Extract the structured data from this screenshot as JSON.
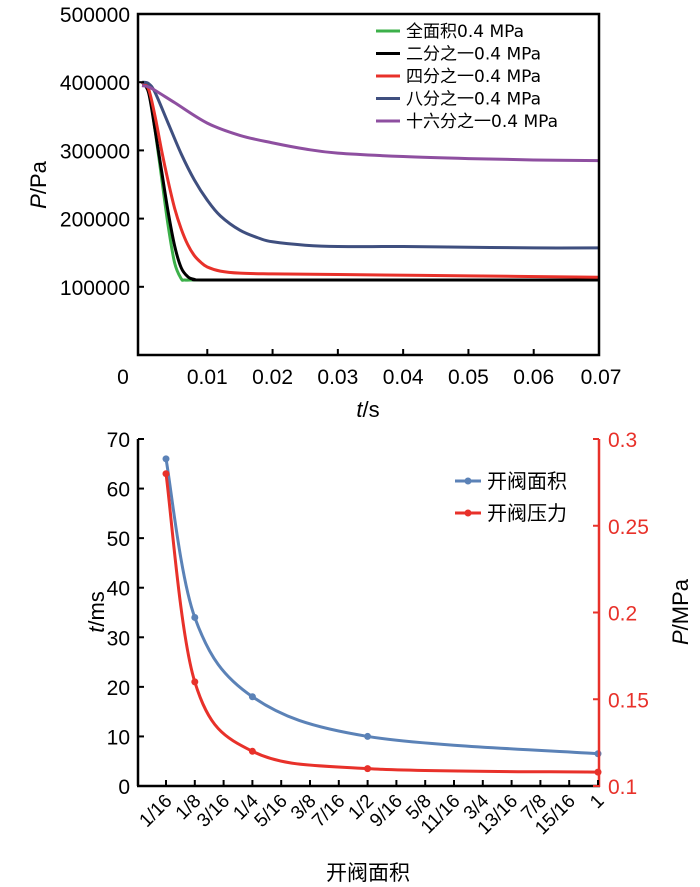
{
  "chart_data": [
    {
      "type": "line",
      "title": "",
      "xlabel": {
        "var": "t",
        "unit": "/s"
      },
      "ylabel": {
        "var": "P",
        "unit": "/Pa"
      },
      "xlim": [
        0,
        0.07
      ],
      "ylim": [
        0,
        500000
      ],
      "x_ticks": [
        0,
        0.01,
        0.02,
        0.03,
        0.04,
        0.05,
        0.06,
        0.07
      ],
      "x_tick_labels": [
        "0",
        "0.01",
        "0.02",
        "0.03",
        "0.04",
        "0.05",
        "0.06",
        "0.07"
      ],
      "y_ticks": [
        100000,
        200000,
        300000,
        400000,
        500000
      ],
      "y_tick_labels": [
        "100000",
        "200000",
        "300000",
        "400000",
        "500000"
      ],
      "grid": false,
      "legend_position": "top-right",
      "series": [
        {
          "name": "全面积0.4 MPa",
          "color": "#3cb04a",
          "x": [
            0,
            0.001,
            0.002,
            0.003,
            0.004,
            0.005,
            0.006,
            0.0065,
            0.008,
            0.01,
            0.03,
            0.07
          ],
          "y": [
            400000,
            390000,
            330000,
            260000,
            190000,
            135000,
            112000,
            110000,
            110000,
            110000,
            110000,
            110000
          ]
        },
        {
          "name": "二分之一0.4 MPa",
          "color": "#000000",
          "x": [
            0,
            0.001,
            0.002,
            0.003,
            0.004,
            0.005,
            0.006,
            0.007,
            0.008,
            0.01,
            0.03,
            0.07
          ],
          "y": [
            400000,
            385000,
            330000,
            270000,
            210000,
            160000,
            128000,
            115000,
            111000,
            110000,
            110000,
            110000
          ]
        },
        {
          "name": "四分之一0.4 MPa",
          "color": "#e8312a",
          "x": [
            0,
            0.001,
            0.002,
            0.003,
            0.004,
            0.005,
            0.006,
            0.007,
            0.008,
            0.009,
            0.01,
            0.012,
            0.015,
            0.02,
            0.03,
            0.05,
            0.07
          ],
          "y": [
            400000,
            390000,
            350000,
            300000,
            255000,
            215000,
            185000,
            162000,
            146000,
            136000,
            129000,
            123000,
            120000,
            119000,
            118000,
            116000,
            114000
          ]
        },
        {
          "name": "八分之一0.4 MPa",
          "color": "#3f4f7f",
          "x": [
            0,
            0.001,
            0.002,
            0.004,
            0.006,
            0.008,
            0.01,
            0.012,
            0.015,
            0.018,
            0.02,
            0.025,
            0.03,
            0.04,
            0.05,
            0.06,
            0.07
          ],
          "y": [
            400000,
            398000,
            385000,
            340000,
            295000,
            257000,
            227000,
            204000,
            183000,
            171000,
            166000,
            161000,
            159000,
            159000,
            158000,
            157000,
            157000
          ]
        },
        {
          "name": "十六分之一0.4 MPa",
          "color": "#8e4fa0",
          "x": [
            0,
            0.001,
            0.002,
            0.005,
            0.01,
            0.015,
            0.02,
            0.025,
            0.03,
            0.04,
            0.05,
            0.06,
            0.07
          ],
          "y": [
            395000,
            393000,
            388000,
            370000,
            340000,
            322000,
            311000,
            302000,
            296000,
            291000,
            288000,
            286000,
            285000
          ]
        }
      ]
    },
    {
      "type": "line",
      "title": "",
      "xlabel": "开阀面积",
      "ylabel_left": {
        "var": "t",
        "unit": "/ms"
      },
      "ylabel_right": {
        "var": "P",
        "unit": "/MPa"
      },
      "ylim_left": [
        0,
        70
      ],
      "ylim_right": [
        0.1,
        0.3
      ],
      "y_ticks_left": [
        0,
        10,
        20,
        30,
        40,
        50,
        60,
        70
      ],
      "y_tick_labels_left": [
        "0",
        "10",
        "20",
        "30",
        "40",
        "50",
        "60",
        "70"
      ],
      "y_ticks_right": [
        0.1,
        0.15,
        0.2,
        0.25,
        0.3
      ],
      "y_tick_labels_right": [
        "0.1",
        "0.15",
        "0.2",
        "0.25",
        "0.3"
      ],
      "right_axis_color": "#e8312a",
      "categories": [
        "1/16",
        "1/8",
        "3/16",
        "1/4",
        "5/16",
        "3/8",
        "7/16",
        "1/2",
        "9/16",
        "5/8",
        "11/16",
        "3/4",
        "13/16",
        "7/8",
        "15/16",
        "1"
      ],
      "grid": false,
      "legend_position": "top-right",
      "series": [
        {
          "name": "开阀面积",
          "axis": "left",
          "color": "#5b82b7",
          "x": [
            0.0625,
            0.125,
            0.25,
            0.5,
            1
          ],
          "y": [
            66,
            34,
            18,
            10,
            6.5
          ]
        },
        {
          "name": "开阀压力",
          "axis": "right",
          "color": "#e8312a",
          "x": [
            0.0625,
            0.125,
            0.25,
            0.5,
            1
          ],
          "y": [
            0.28,
            0.16,
            0.12,
            0.11,
            0.108
          ]
        }
      ]
    }
  ]
}
